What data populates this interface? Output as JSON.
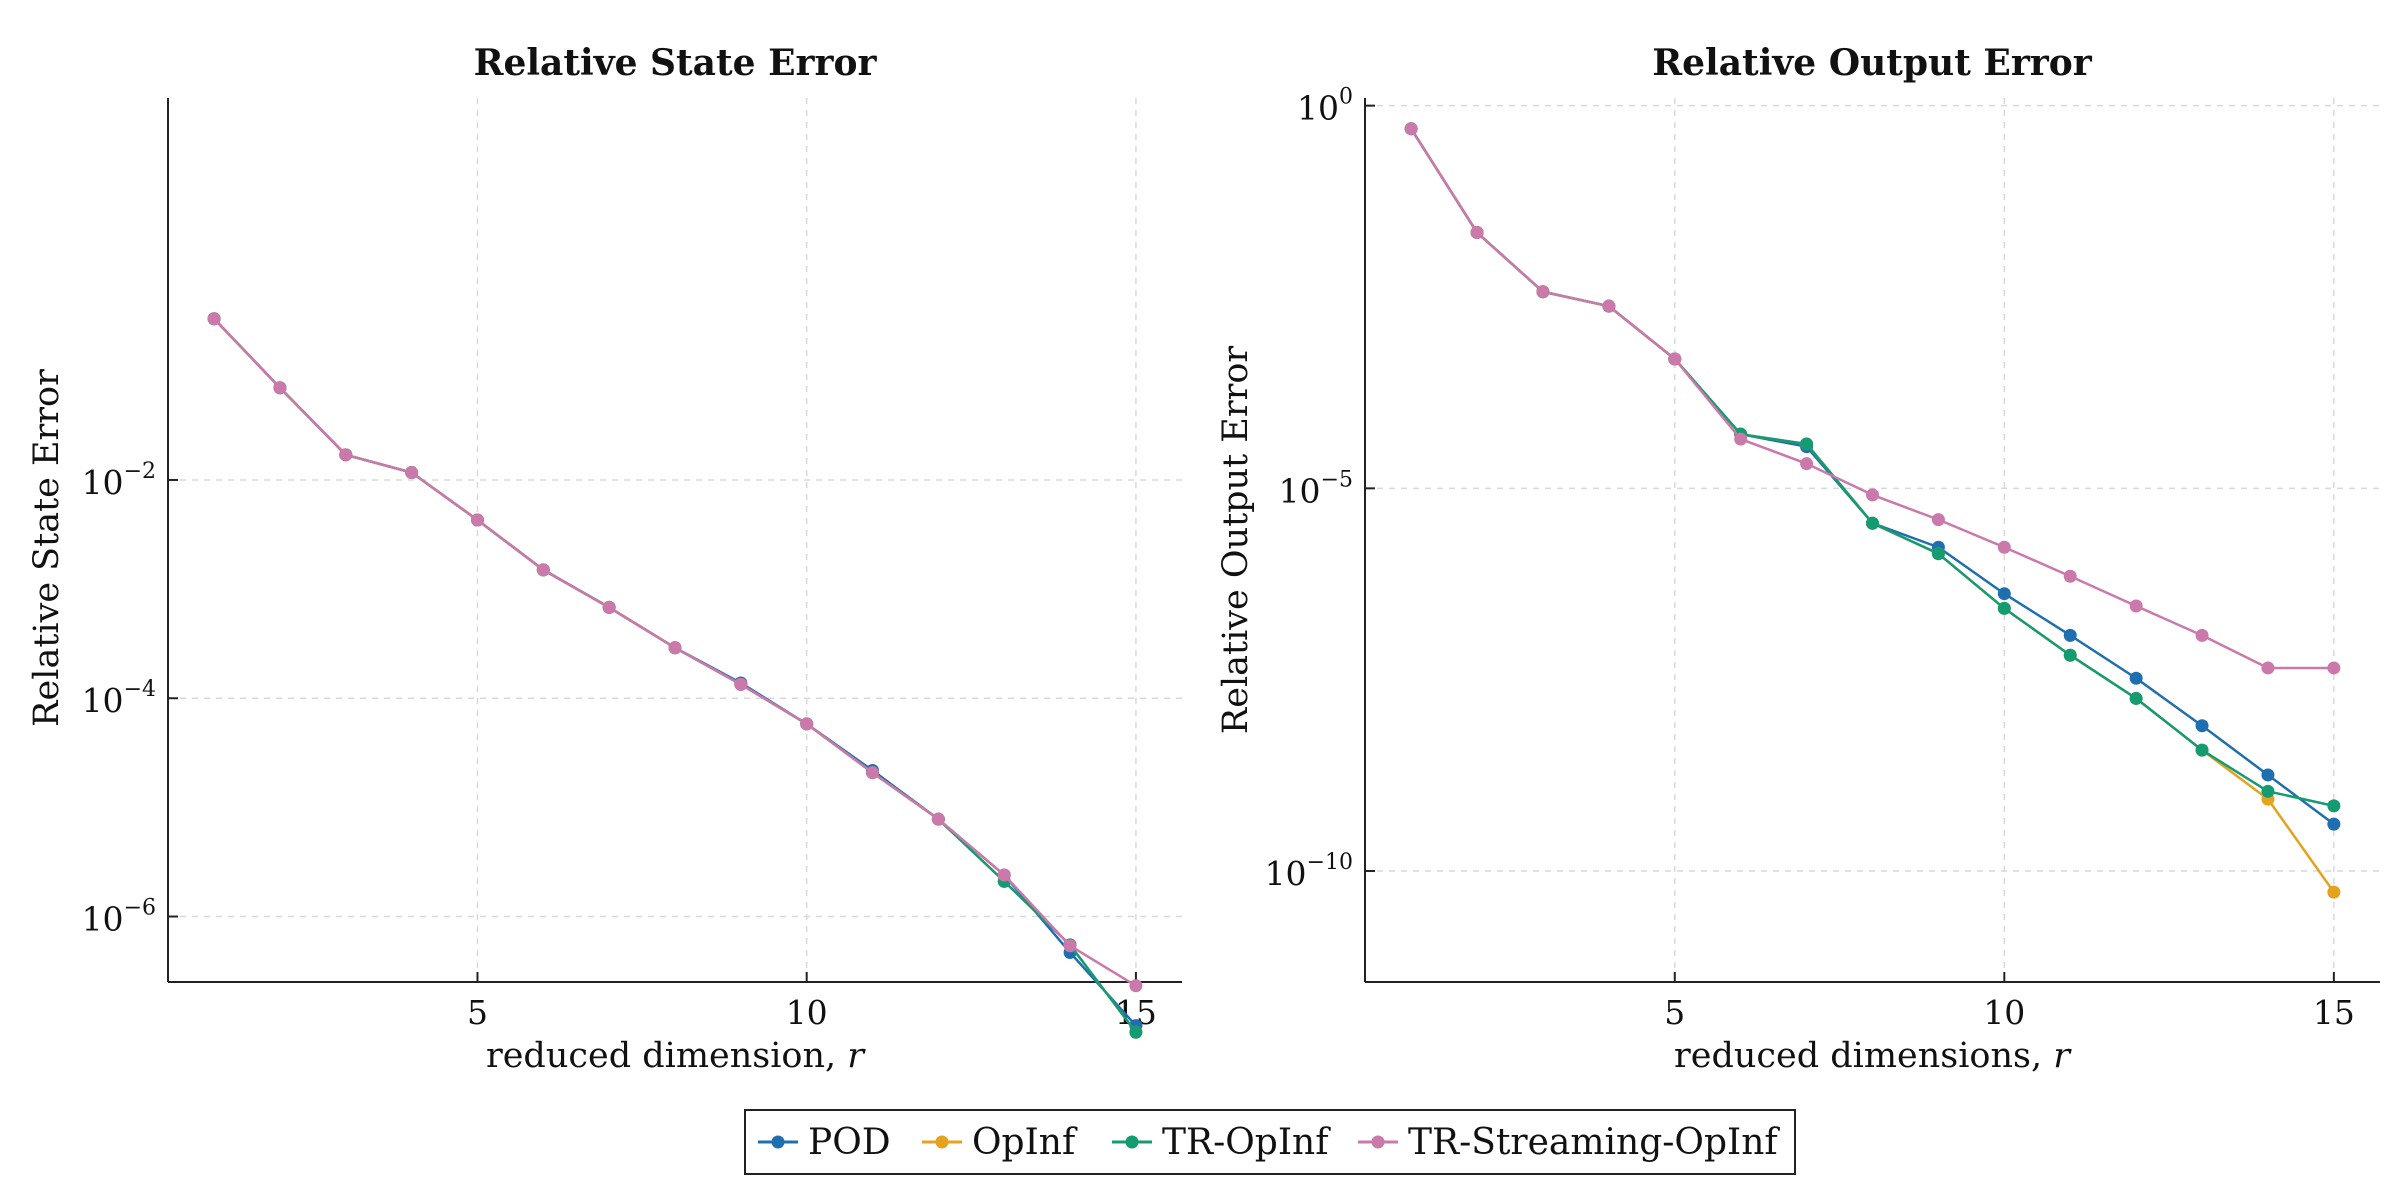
{
  "colors": {
    "POD": "#1f6fb0",
    "OpInf": "#e5a21d",
    "TR-OpInf": "#149b72",
    "TR-Streaming-OpInf": "#cb78ab"
  },
  "legend": {
    "position": "bottom-center",
    "entries": [
      "POD",
      "OpInf",
      "TR-OpInf",
      "TR-Streaming-OpInf"
    ]
  },
  "chart_data": [
    {
      "type": "line",
      "title": "Relative State Error",
      "xlabel": "reduced dimension, r",
      "xlabel_text": "reduced dimension, ",
      "xlabel_var": "r",
      "ylabel": "Relative State Error",
      "yscale": "log",
      "grid": true,
      "xlim": [
        0.3,
        15.7
      ],
      "ylim_log10": [
        -6.6,
        1.5
      ],
      "xticks": [
        5,
        10,
        15
      ],
      "yticks_log10": [
        -2,
        -4,
        -6
      ],
      "x": [
        1,
        2,
        3,
        4,
        5,
        6,
        7,
        8,
        9,
        10,
        11,
        12,
        13,
        14,
        15
      ],
      "series": [
        {
          "name": "POD",
          "values": [
            0.3,
            0.07,
            0.017,
            0.0117,
            0.0043,
            0.0015,
            0.00068,
            0.00029,
            0.000138,
            5.82e-05,
            2.18e-05,
            7.8e-06,
            2.4e-06,
            4.68e-07,
            1e-07
          ]
        },
        {
          "name": "OpInf",
          "values": [
            0.3,
            0.07,
            0.017,
            0.0117,
            0.0043,
            0.0015,
            0.00068,
            0.00029,
            0.000134,
            5.82e-05,
            2.08e-05,
            7.8e-06,
            2.1e-06,
            5.5e-07,
            8.7e-08
          ]
        },
        {
          "name": "TR-OpInf",
          "values": [
            0.3,
            0.07,
            0.017,
            0.0117,
            0.0043,
            0.0015,
            0.00068,
            0.00029,
            0.000134,
            5.82e-05,
            2.08e-05,
            7.8e-06,
            2.1e-06,
            5.5e-07,
            8.7e-08
          ]
        },
        {
          "name": "TR-Streaming-OpInf",
          "values": [
            0.3,
            0.07,
            0.017,
            0.0117,
            0.0043,
            0.0015,
            0.00068,
            0.00029,
            0.000134,
            5.82e-05,
            2.08e-05,
            7.8e-06,
            2.4e-06,
            5.4e-07,
            2.32e-07
          ]
        }
      ]
    },
    {
      "type": "line",
      "title": "Relative Output Error",
      "xlabel": "reduced dimensions, r",
      "xlabel_text": "reduced dimensions, ",
      "xlabel_var": "r",
      "ylabel": "Relative Output Error",
      "yscale": "log",
      "grid": true,
      "xlim": [
        0.3,
        15.7
      ],
      "ylim_log10": [
        -11.45,
        0.1
      ],
      "xticks": [
        5,
        10,
        15
      ],
      "yticks_log10": [
        0,
        -5,
        -10
      ],
      "x": [
        1,
        2,
        3,
        4,
        5,
        6,
        7,
        8,
        9,
        10,
        11,
        12,
        13,
        14,
        15
      ],
      "series": [
        {
          "name": "POD",
          "values": [
            0.5,
            0.022,
            0.0037,
            0.0024,
            0.00049,
            5.1e-05,
            3.5e-05,
            3.5e-06,
            1.7e-06,
            4.2e-07,
            1.2e-07,
            3.3e-08,
            7.9e-09,
            1.8e-09,
            4.1e-10
          ]
        },
        {
          "name": "OpInf",
          "values": [
            0.5,
            0.022,
            0.0037,
            0.0024,
            0.00049,
            5.1e-05,
            3.8e-05,
            3.5e-06,
            1.4e-06,
            2.7e-07,
            6.6e-08,
            1.8e-08,
            3.8e-09,
            8.7e-10,
            5.3e-11
          ]
        },
        {
          "name": "TR-OpInf",
          "values": [
            0.5,
            0.022,
            0.0037,
            0.0024,
            0.00049,
            5.1e-05,
            3.8e-05,
            3.5e-06,
            1.4e-06,
            2.7e-07,
            6.6e-08,
            1.8e-08,
            3.8e-09,
            1.1e-09,
            7.1e-10
          ]
        },
        {
          "name": "TR-Streaming-OpInf",
          "values": [
            0.5,
            0.022,
            0.0037,
            0.0024,
            0.00049,
            4.4e-05,
            2.1e-05,
            8.2e-06,
            3.9e-06,
            1.7e-06,
            7.1e-07,
            2.9e-07,
            1.2e-07,
            4.5e-08,
            4.5e-08
          ]
        }
      ]
    }
  ]
}
